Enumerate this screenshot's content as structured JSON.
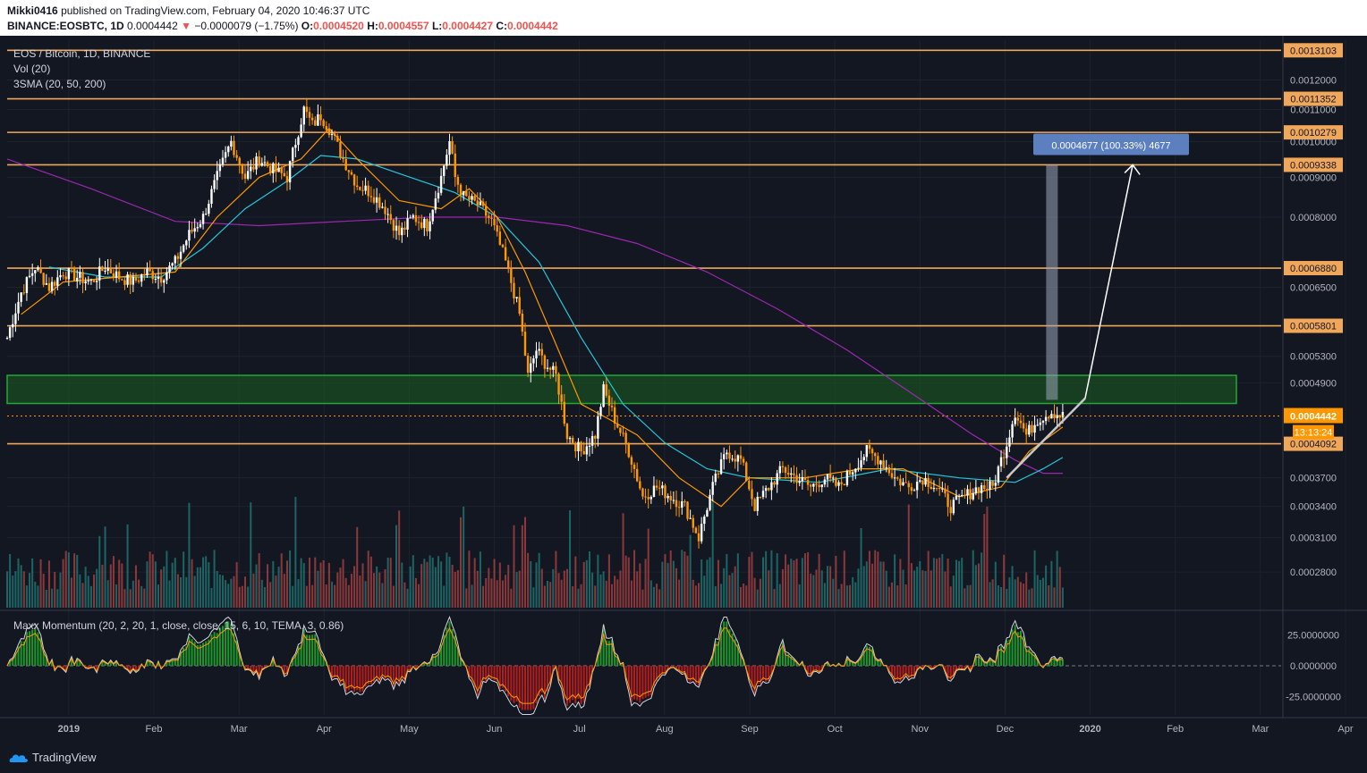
{
  "header": {
    "user": "Mikki0416",
    "published": "published on TradingView.com, February 04, 2020 10:46:37 UTC",
    "symbol": "BINANCE:EOSBTC, 1D",
    "last": "0.0004442",
    "change": "−0.0000079 (−1.75%)",
    "o_label": "O:",
    "o_value": "0.0004520",
    "h_label": "H:",
    "h_value": "0.0004557",
    "l_label": "L:",
    "l_value": "0.0004427",
    "c_label": "C:",
    "c_value": "0.0004442"
  },
  "legend": {
    "title": "EOS / Bitcoin, 1D, BINANCE",
    "vol": "Vol (20)",
    "sma": "3SMA (20, 50, 200)",
    "momentum": "Maxx Momentum (20, 2, 20, 1, close, close, 15, 6, 10, TEMA, 3, 0.86)"
  },
  "footer": {
    "brand": "TradingView"
  },
  "colors": {
    "bg": "#131722",
    "grid": "#1e222d",
    "text": "#b2b5be",
    "up": "#ffffff",
    "down": "#ff9800",
    "level": "#f0a75a",
    "zone_border": "#21a834",
    "zone_fill": "#1b5e20",
    "sma20": "#ff9800",
    "sma50": "#26c6da",
    "sma200": "#9c27b0",
    "vol_up": "#26a69a",
    "vol_down": "#ef5350",
    "measure": "#5b7fbf"
  },
  "chart_data": {
    "type": "candlestick",
    "title": "EOS / Bitcoin, 1D, BINANCE",
    "x_ticks": [
      "2019",
      "Feb",
      "Mar",
      "Apr",
      "May",
      "Jun",
      "Jul",
      "Aug",
      "Sep",
      "Oct",
      "Nov",
      "Dec",
      "2020",
      "Feb",
      "Mar",
      "Apr"
    ],
    "y_ticks": [
      "0.0012000",
      "0.0011000",
      "0.0010000",
      "0.0009000",
      "0.0008000",
      "0.0006500",
      "0.0005300",
      "0.0004900",
      "0.0003700",
      "0.0003400",
      "0.0003100",
      "0.0002800"
    ],
    "y_range": [
      0.00025,
      0.00135
    ],
    "horizontal_levels": [
      "0.0013103",
      "0.0011352",
      "0.0010279",
      "0.0009338",
      "0.0006880",
      "0.0005801",
      "0.0004092"
    ],
    "current_price": "0.0004442",
    "countdown": "13:13:24",
    "support_zone": [
      0.000461,
      0.000501
    ],
    "measure_label": "0.0004677 (100.33%) 4677",
    "close_path": [
      [
        0,
        0.00056
      ],
      [
        5,
        0.00064
      ],
      [
        10,
        0.00069
      ],
      [
        15,
        0.00065
      ],
      [
        20,
        0.00068
      ],
      [
        25,
        0.00067
      ],
      [
        30,
        0.00066
      ],
      [
        35,
        0.00069
      ],
      [
        40,
        0.00067
      ],
      [
        45,
        0.00066
      ],
      [
        50,
        0.00068
      ],
      [
        55,
        0.00067
      ],
      [
        60,
        0.0007
      ],
      [
        65,
        0.00076
      ],
      [
        70,
        0.0008
      ],
      [
        75,
        0.0009
      ],
      [
        80,
        0.001
      ],
      [
        85,
        0.0009
      ],
      [
        90,
        0.00095
      ],
      [
        95,
        0.00092
      ],
      [
        100,
        0.0009
      ],
      [
        103,
        0.001
      ],
      [
        106,
        0.0011
      ],
      [
        109,
        0.00105
      ],
      [
        112,
        0.00108
      ],
      [
        115,
        0.00104
      ],
      [
        120,
        0.00095
      ],
      [
        125,
        0.00088
      ],
      [
        130,
        0.00086
      ],
      [
        135,
        0.00082
      ],
      [
        140,
        0.00076
      ],
      [
        145,
        0.0008
      ],
      [
        150,
        0.00078
      ],
      [
        155,
        0.0009
      ],
      [
        158,
        0.001
      ],
      [
        160,
        0.0009
      ],
      [
        163,
        0.00085
      ],
      [
        168,
        0.00083
      ],
      [
        173,
        0.00079
      ],
      [
        178,
        0.0007
      ],
      [
        183,
        0.0006
      ],
      [
        186,
        0.0005
      ],
      [
        189,
        0.00054
      ],
      [
        192,
        0.00052
      ],
      [
        196,
        0.0005
      ],
      [
        200,
        0.00042
      ],
      [
        205,
        0.0004
      ],
      [
        210,
        0.00042
      ],
      [
        213,
        0.00048
      ],
      [
        217,
        0.00044
      ],
      [
        222,
        0.0004
      ],
      [
        227,
        0.00035
      ],
      [
        232,
        0.00036
      ],
      [
        237,
        0.00035
      ],
      [
        242,
        0.00034
      ],
      [
        247,
        0.00031
      ],
      [
        252,
        0.00036
      ],
      [
        257,
        0.0004
      ],
      [
        262,
        0.00039
      ],
      [
        267,
        0.00034
      ],
      [
        272,
        0.00036
      ],
      [
        277,
        0.00038
      ],
      [
        282,
        0.00037
      ],
      [
        287,
        0.00036
      ],
      [
        292,
        0.00037
      ],
      [
        297,
        0.00036
      ],
      [
        302,
        0.00038
      ],
      [
        307,
        0.0004
      ],
      [
        312,
        0.00039
      ],
      [
        317,
        0.00037
      ],
      [
        322,
        0.00036
      ],
      [
        327,
        0.00037
      ],
      [
        332,
        0.00036
      ],
      [
        337,
        0.00034
      ],
      [
        342,
        0.00035
      ],
      [
        347,
        0.00036
      ],
      [
        352,
        0.00036
      ],
      [
        357,
        0.00041
      ],
      [
        360,
        0.00045
      ],
      [
        364,
        0.00042
      ],
      [
        368,
        0.00044
      ],
      [
        373,
        0.00045
      ],
      [
        377,
        0.000444
      ]
    ],
    "sma20_path": [
      [
        5,
        0.0006
      ],
      [
        20,
        0.00066
      ],
      [
        40,
        0.00067
      ],
      [
        60,
        0.00068
      ],
      [
        75,
        0.0008
      ],
      [
        90,
        0.0009
      ],
      [
        105,
        0.00095
      ],
      [
        115,
        0.00104
      ],
      [
        125,
        0.00095
      ],
      [
        140,
        0.00084
      ],
      [
        155,
        0.00082
      ],
      [
        165,
        0.00087
      ],
      [
        175,
        0.0008
      ],
      [
        185,
        0.00068
      ],
      [
        195,
        0.00056
      ],
      [
        205,
        0.00046
      ],
      [
        215,
        0.00044
      ],
      [
        225,
        0.00042
      ],
      [
        240,
        0.00037
      ],
      [
        255,
        0.00034
      ],
      [
        265,
        0.00037
      ],
      [
        285,
        0.00037
      ],
      [
        305,
        0.00038
      ],
      [
        320,
        0.00038
      ],
      [
        340,
        0.00035
      ],
      [
        355,
        0.00036
      ],
      [
        365,
        0.0004
      ],
      [
        377,
        0.00043
      ]
    ],
    "sma50_path": [
      [
        15,
        0.00069
      ],
      [
        35,
        0.00067
      ],
      [
        55,
        0.00067
      ],
      [
        70,
        0.00073
      ],
      [
        85,
        0.00082
      ],
      [
        100,
        0.00089
      ],
      [
        112,
        0.00096
      ],
      [
        125,
        0.00095
      ],
      [
        140,
        0.00091
      ],
      [
        160,
        0.00086
      ],
      [
        175,
        0.0008
      ],
      [
        190,
        0.0007
      ],
      [
        205,
        0.00056
      ],
      [
        220,
        0.00046
      ],
      [
        235,
        0.00041
      ],
      [
        250,
        0.00038
      ],
      [
        265,
        0.00037
      ],
      [
        290,
        0.000365
      ],
      [
        315,
        0.00038
      ],
      [
        340,
        0.00037
      ],
      [
        360,
        0.000365
      ],
      [
        370,
        0.00038
      ],
      [
        377,
        0.000393
      ]
    ],
    "sma200_path": [
      [
        0,
        0.00095
      ],
      [
        30,
        0.00087
      ],
      [
        60,
        0.00079
      ],
      [
        90,
        0.00078
      ],
      [
        120,
        0.00079
      ],
      [
        150,
        0.0008
      ],
      [
        175,
        0.0008
      ],
      [
        200,
        0.00078
      ],
      [
        225,
        0.00074
      ],
      [
        250,
        0.00068
      ],
      [
        275,
        0.00061
      ],
      [
        300,
        0.00054
      ],
      [
        325,
        0.00047
      ],
      [
        345,
        0.00042
      ],
      [
        360,
        0.00039
      ],
      [
        370,
        0.000375
      ],
      [
        377,
        0.000375
      ]
    ],
    "volume_scale": [
      0,
      1
    ],
    "momentum_range": [
      -40,
      40
    ],
    "momentum_ticks": [
      "25.0000000",
      "0.0000000",
      "-25.0000000"
    ]
  }
}
